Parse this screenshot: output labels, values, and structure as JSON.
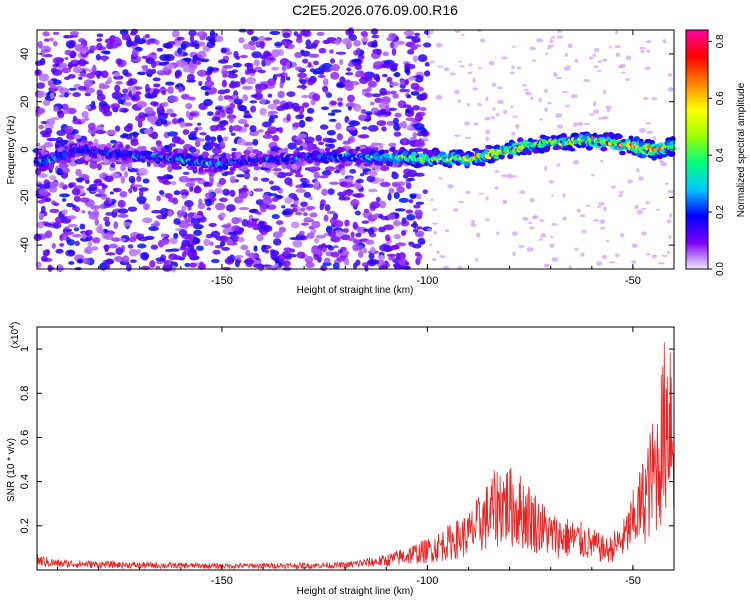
{
  "title": "C2E5.2026.076.09.00.R16",
  "chart_data": [
    {
      "type": "heatmap",
      "xlabel": "Height of straight line (km)",
      "ylabel": "Frequency (Hz)",
      "xlim": [
        -195,
        -40
      ],
      "ylim": [
        -50,
        50
      ],
      "xticks": [
        -150,
        -100,
        -50
      ],
      "yticks": [
        -40,
        -20,
        0,
        20,
        40
      ],
      "colorbar": {
        "label": "Normalized spectral amplitude",
        "range": [
          0.0,
          0.84
        ],
        "ticks": [
          0.0,
          0.2,
          0.4,
          0.6,
          0.8
        ],
        "colormap": [
          "#f5e8fb",
          "#7b00ff",
          "#0000ff",
          "#00c8ff",
          "#00ff80",
          "#9cff00",
          "#ffff00",
          "#ff8000",
          "#ff0000",
          "#ff00a0"
        ]
      },
      "ridge": {
        "description_points": [
          {
            "x": -193,
            "y": -5,
            "amp": 0.3
          },
          {
            "x": -185,
            "y": 0,
            "amp": 0.22
          },
          {
            "x": -150,
            "y": -6,
            "amp": 0.3
          },
          {
            "x": -140,
            "y": -4,
            "amp": 0.2
          },
          {
            "x": -120,
            "y": -3,
            "amp": 0.3
          },
          {
            "x": -110,
            "y": -3,
            "amp": 0.4
          },
          {
            "x": -100,
            "y": -4,
            "amp": 0.55
          },
          {
            "x": -90,
            "y": -4,
            "amp": 0.55
          },
          {
            "x": -80,
            "y": 0,
            "amp": 0.6
          },
          {
            "x": -70,
            "y": 3,
            "amp": 0.55
          },
          {
            "x": -60,
            "y": 4,
            "amp": 0.5
          },
          {
            "x": -45,
            "y": 0,
            "amp": 0.75
          },
          {
            "x": -41,
            "y": 1,
            "amp": 0.6
          }
        ]
      },
      "noise_region": {
        "x_from": -195,
        "x_to": -100,
        "y_from": -50,
        "y_to": 50
      }
    },
    {
      "type": "line",
      "xlabel": "Height of straight line (km)",
      "ylabel": "SNR (10 * v/v)",
      "scale_label": "(x10",
      "scale_exp": "4",
      "scale_close": ")",
      "xlim": [
        -195,
        -40
      ],
      "ylim": [
        0,
        1.1
      ],
      "xticks": [
        -150,
        -100,
        -50
      ],
      "yticks": [
        0.2,
        0.4,
        0.6,
        0.8,
        1.0
      ],
      "color": "#ee2222",
      "envelope": [
        {
          "x": -195,
          "y": 0.06
        },
        {
          "x": -190,
          "y": 0.04
        },
        {
          "x": -170,
          "y": 0.03
        },
        {
          "x": -150,
          "y": 0.025
        },
        {
          "x": -120,
          "y": 0.03
        },
        {
          "x": -110,
          "y": 0.06
        },
        {
          "x": -100,
          "y": 0.12
        },
        {
          "x": -90,
          "y": 0.22
        },
        {
          "x": -82,
          "y": 0.42
        },
        {
          "x": -76,
          "y": 0.35
        },
        {
          "x": -70,
          "y": 0.22
        },
        {
          "x": -62,
          "y": 0.18
        },
        {
          "x": -56,
          "y": 0.12
        },
        {
          "x": -52,
          "y": 0.2
        },
        {
          "x": -48,
          "y": 0.4
        },
        {
          "x": -44,
          "y": 0.65
        },
        {
          "x": -41,
          "y": 1.06
        },
        {
          "x": -40,
          "y": 0.8
        }
      ]
    }
  ]
}
